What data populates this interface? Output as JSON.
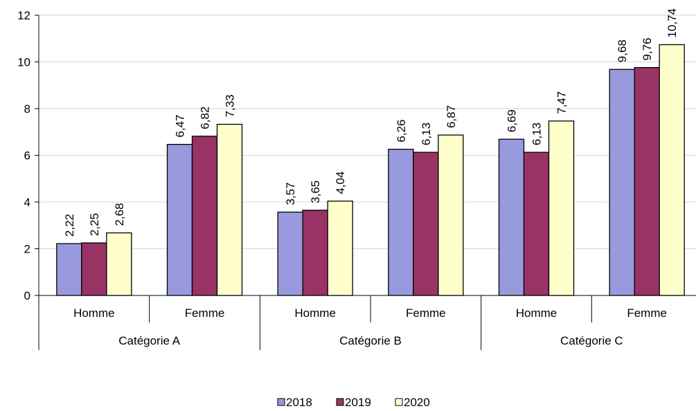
{
  "chart_data": {
    "type": "bar",
    "groups": [
      {
        "label": "Catégorie A",
        "categories": [
          "Homme",
          "Femme"
        ]
      },
      {
        "label": "Catégorie B",
        "categories": [
          "Homme",
          "Femme"
        ]
      },
      {
        "label": "Catégorie C",
        "categories": [
          "Homme",
          "Femme"
        ]
      }
    ],
    "categories": [
      "Homme",
      "Femme",
      "Homme",
      "Femme",
      "Homme",
      "Femme"
    ],
    "series": [
      {
        "name": "2018",
        "color": "#9999dd",
        "values": [
          2.22,
          6.47,
          3.57,
          6.26,
          6.69,
          9.68
        ],
        "labels": [
          "2,22",
          "6,47",
          "3,57",
          "6,26",
          "6,69",
          "9,68"
        ]
      },
      {
        "name": "2019",
        "color": "#993366",
        "values": [
          2.25,
          6.82,
          3.65,
          6.13,
          6.13,
          9.76
        ],
        "labels": [
          "2,25",
          "6,82",
          "3,65",
          "6,13",
          "6,13",
          "9,76"
        ]
      },
      {
        "name": "2020",
        "color": "#ffffcc",
        "values": [
          2.68,
          7.33,
          4.04,
          6.87,
          7.47,
          10.74
        ],
        "labels": [
          "2,68",
          "7,33",
          "4,04",
          "6,87",
          "7,47",
          "10,74"
        ]
      }
    ],
    "yticks": [
      "0",
      "2",
      "4",
      "6",
      "8",
      "10",
      "12"
    ],
    "ylim": [
      0,
      12
    ],
    "grid": true,
    "legend_position": "bottom",
    "title": "",
    "xlabel": "",
    "ylabel": ""
  }
}
